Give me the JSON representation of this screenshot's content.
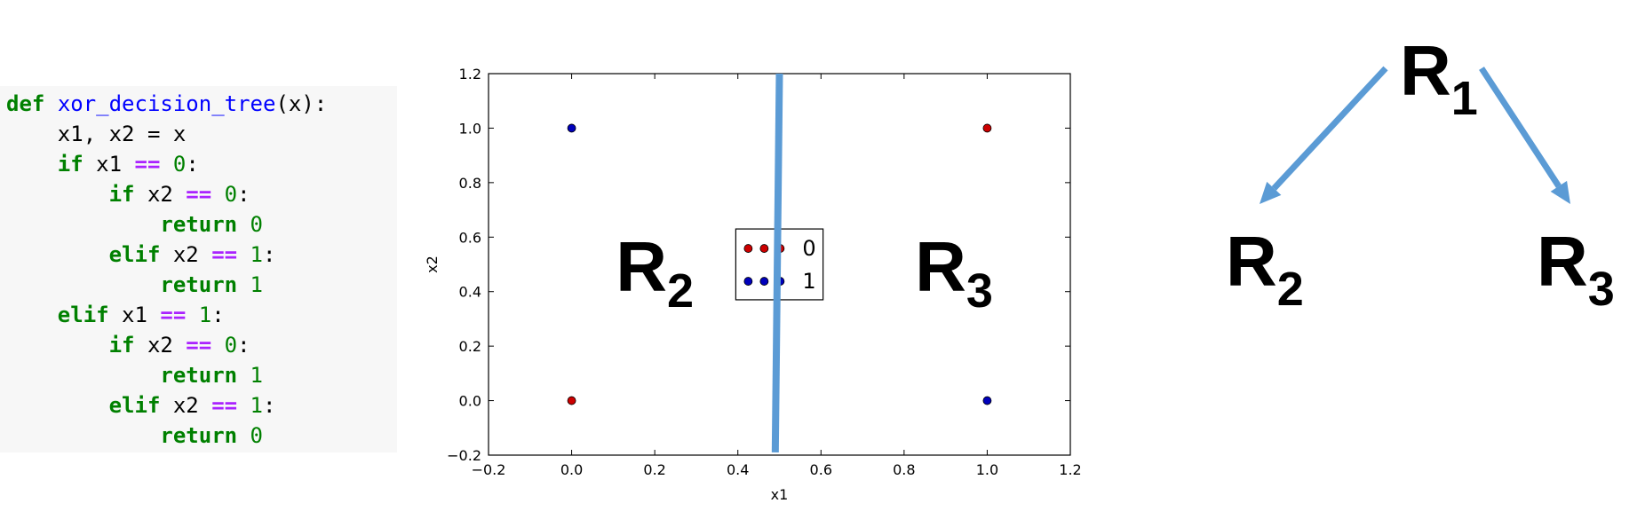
{
  "code": {
    "lines": [
      {
        "indent": "",
        "tokens": [
          {
            "t": "def",
            "c": "kw"
          },
          {
            "t": " ",
            "c": ""
          },
          {
            "t": "xor_decision_tree",
            "c": "fn"
          },
          {
            "t": "(x):",
            "c": ""
          }
        ]
      },
      {
        "indent": "    ",
        "tokens": [
          {
            "t": "x1, x2 = x",
            "c": ""
          }
        ]
      },
      {
        "indent": "    ",
        "tokens": [
          {
            "t": "if",
            "c": "kw"
          },
          {
            "t": " x1 ",
            "c": ""
          },
          {
            "t": "==",
            "c": "op"
          },
          {
            "t": " ",
            "c": ""
          },
          {
            "t": "0",
            "c": "num"
          },
          {
            "t": ":",
            "c": ""
          }
        ]
      },
      {
        "indent": "        ",
        "tokens": [
          {
            "t": "if",
            "c": "kw"
          },
          {
            "t": " x2 ",
            "c": ""
          },
          {
            "t": "==",
            "c": "op"
          },
          {
            "t": " ",
            "c": ""
          },
          {
            "t": "0",
            "c": "num"
          },
          {
            "t": ":",
            "c": ""
          }
        ]
      },
      {
        "indent": "            ",
        "tokens": [
          {
            "t": "return",
            "c": "kw"
          },
          {
            "t": " ",
            "c": ""
          },
          {
            "t": "0",
            "c": "num"
          }
        ]
      },
      {
        "indent": "        ",
        "tokens": [
          {
            "t": "elif",
            "c": "kw"
          },
          {
            "t": " x2 ",
            "c": ""
          },
          {
            "t": "==",
            "c": "op"
          },
          {
            "t": " ",
            "c": ""
          },
          {
            "t": "1",
            "c": "num"
          },
          {
            "t": ":",
            "c": ""
          }
        ]
      },
      {
        "indent": "            ",
        "tokens": [
          {
            "t": "return",
            "c": "kw"
          },
          {
            "t": " ",
            "c": ""
          },
          {
            "t": "1",
            "c": "num"
          }
        ]
      },
      {
        "indent": "    ",
        "tokens": [
          {
            "t": "elif",
            "c": "kw"
          },
          {
            "t": " x1 ",
            "c": ""
          },
          {
            "t": "==",
            "c": "op"
          },
          {
            "t": " ",
            "c": ""
          },
          {
            "t": "1",
            "c": "num"
          },
          {
            "t": ":",
            "c": ""
          }
        ]
      },
      {
        "indent": "        ",
        "tokens": [
          {
            "t": "if",
            "c": "kw"
          },
          {
            "t": " x2 ",
            "c": ""
          },
          {
            "t": "==",
            "c": "op"
          },
          {
            "t": " ",
            "c": ""
          },
          {
            "t": "0",
            "c": "num"
          },
          {
            "t": ":",
            "c": ""
          }
        ]
      },
      {
        "indent": "            ",
        "tokens": [
          {
            "t": "return",
            "c": "kw"
          },
          {
            "t": " ",
            "c": ""
          },
          {
            "t": "1",
            "c": "num"
          }
        ]
      },
      {
        "indent": "        ",
        "tokens": [
          {
            "t": "elif",
            "c": "kw"
          },
          {
            "t": " x2 ",
            "c": ""
          },
          {
            "t": "==",
            "c": "op"
          },
          {
            "t": " ",
            "c": ""
          },
          {
            "t": "1",
            "c": "num"
          },
          {
            "t": ":",
            "c": ""
          }
        ]
      },
      {
        "indent": "            ",
        "tokens": [
          {
            "t": "return",
            "c": "kw"
          },
          {
            "t": " ",
            "c": ""
          },
          {
            "t": "0",
            "c": "num"
          }
        ]
      }
    ]
  },
  "chart_data": {
    "type": "scatter",
    "title": "",
    "xlabel": "x1",
    "ylabel": "x2",
    "xlim": [
      -0.2,
      1.2
    ],
    "ylim": [
      -0.2,
      1.2
    ],
    "xticks": [
      "−0.2",
      "0.0",
      "0.2",
      "0.4",
      "0.6",
      "0.8",
      "1.0",
      "1.2"
    ],
    "yticks": [
      "−0.2",
      "0.0",
      "0.2",
      "0.4",
      "0.6",
      "0.8",
      "1.0",
      "1.2"
    ],
    "series": [
      {
        "name": "0",
        "color": "#cc0000",
        "points": [
          [
            0,
            0
          ],
          [
            1,
            1
          ]
        ]
      },
      {
        "name": "1",
        "color": "#0000bb",
        "points": [
          [
            0,
            1
          ],
          [
            1,
            0
          ]
        ]
      }
    ],
    "split_line": {
      "color": "#5b9bd5",
      "from": [
        0.5,
        1.2
      ],
      "to": [
        0.49,
        -0.19
      ]
    },
    "legend_placement": "center",
    "region_labels": [
      {
        "main": "R",
        "sub": "2",
        "x": 0.2,
        "y": 0.5
      },
      {
        "main": "R",
        "sub": "3",
        "x": 0.92,
        "y": 0.5
      }
    ]
  },
  "tree": {
    "root": {
      "main": "R",
      "sub": "1"
    },
    "left": {
      "main": "R",
      "sub": "2"
    },
    "right": {
      "main": "R",
      "sub": "3"
    },
    "arrow_color": "#5b9bd5"
  }
}
